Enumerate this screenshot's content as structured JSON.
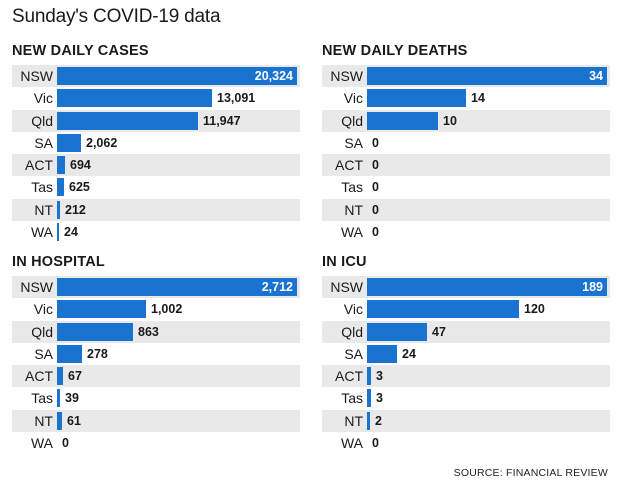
{
  "title": "Sunday's COVID-19 data",
  "source": "SOURCE: FINANCIAL REVIEW",
  "accent_color": "#1a73d1",
  "chart_data": [
    {
      "type": "bar",
      "title": "NEW DAILY CASES",
      "categories": [
        "NSW",
        "Vic",
        "Qld",
        "SA",
        "ACT",
        "Tas",
        "NT",
        "WA"
      ],
      "values": [
        20324,
        13091,
        11947,
        2062,
        694,
        625,
        212,
        24
      ],
      "value_labels": [
        "20,324",
        "13,091",
        "11,947",
        "2,062",
        "694",
        "625",
        "212",
        "24"
      ]
    },
    {
      "type": "bar",
      "title": "NEW DAILY DEATHS",
      "categories": [
        "NSW",
        "Vic",
        "Qld",
        "SA",
        "ACT",
        "Tas",
        "NT",
        "WA"
      ],
      "values": [
        34,
        14,
        10,
        0,
        0,
        0,
        0,
        0
      ],
      "value_labels": [
        "34",
        "14",
        "10",
        "0",
        "0",
        "0",
        "0",
        "0"
      ]
    },
    {
      "type": "bar",
      "title": "IN HOSPITAL",
      "categories": [
        "NSW",
        "Vic",
        "Qld",
        "SA",
        "ACT",
        "Tas",
        "NT",
        "WA"
      ],
      "values": [
        2712,
        1002,
        863,
        278,
        67,
        39,
        61,
        0
      ],
      "value_labels": [
        "2,712",
        "1,002",
        "863",
        "278",
        "67",
        "39",
        "61",
        "0"
      ]
    },
    {
      "type": "bar",
      "title": "IN ICU",
      "categories": [
        "NSW",
        "Vic",
        "Qld",
        "SA",
        "ACT",
        "Tas",
        "NT",
        "WA"
      ],
      "values": [
        189,
        120,
        47,
        24,
        3,
        3,
        2,
        0
      ],
      "value_labels": [
        "189",
        "120",
        "47",
        "24",
        "3",
        "3",
        "2",
        "0"
      ]
    }
  ]
}
